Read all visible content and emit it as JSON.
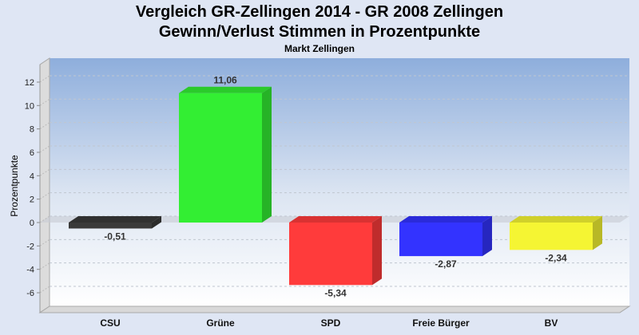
{
  "chart_data": {
    "type": "bar",
    "title": "Vergleich GR-Zellingen 2014 - GR 2008 Zellingen",
    "subtitle": "Gewinn/Verlust Stimmen in Prozentpunkte",
    "subsubtitle": "Markt Zellingen",
    "xlabel": "",
    "ylabel": "Prozentpunkte",
    "categories": [
      "CSU",
      "Grüne",
      "SPD",
      "Freie Bürger",
      "BV"
    ],
    "values": [
      -0.51,
      11.06,
      -5.34,
      -2.87,
      -2.34
    ],
    "value_labels": [
      "-0,51",
      "11,06",
      "-5,34",
      "-2,87",
      "-2,34"
    ],
    "colors": [
      "#3a3a3a",
      "#33ee33",
      "#ff3b3b",
      "#3333ff",
      "#f5f533"
    ],
    "yticks": [
      -6,
      -4,
      -2,
      0,
      2,
      4,
      6,
      8,
      10,
      12
    ],
    "ylim": [
      -7.7,
      13.5
    ],
    "grid": true,
    "legend": "none"
  }
}
